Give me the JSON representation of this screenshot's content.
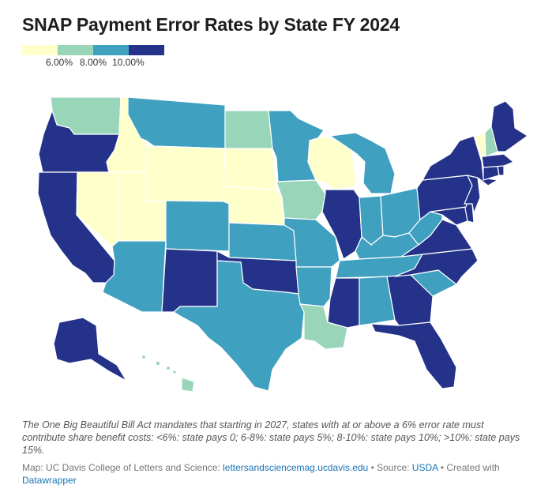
{
  "title": "SNAP Payment Error Rates by State FY 2024",
  "legend": {
    "colors": [
      "#ffffcc",
      "#98d5b9",
      "#40a0c0",
      "#243289"
    ],
    "ticks": [
      "6.00%",
      "8.00%",
      "10.00%"
    ]
  },
  "map": {
    "states": [
      {
        "id": "WA",
        "cls": 1
      },
      {
        "id": "OR",
        "cls": 3
      },
      {
        "id": "CA",
        "cls": 3
      },
      {
        "id": "ID",
        "cls": 0
      },
      {
        "id": "NV",
        "cls": 0
      },
      {
        "id": "UT",
        "cls": 0
      },
      {
        "id": "AZ",
        "cls": 2
      },
      {
        "id": "MT",
        "cls": 2
      },
      {
        "id": "WY",
        "cls": 0
      },
      {
        "id": "CO",
        "cls": 2
      },
      {
        "id": "NM",
        "cls": 3
      },
      {
        "id": "ND",
        "cls": 1
      },
      {
        "id": "SD",
        "cls": 0
      },
      {
        "id": "NE",
        "cls": 0
      },
      {
        "id": "KS",
        "cls": 2
      },
      {
        "id": "OK",
        "cls": 3
      },
      {
        "id": "TX",
        "cls": 2
      },
      {
        "id": "MN",
        "cls": 2
      },
      {
        "id": "IA",
        "cls": 1
      },
      {
        "id": "MO",
        "cls": 2
      },
      {
        "id": "AR",
        "cls": 2
      },
      {
        "id": "LA",
        "cls": 1
      },
      {
        "id": "WI",
        "cls": 0
      },
      {
        "id": "IL",
        "cls": 3
      },
      {
        "id": "MI",
        "cls": 2
      },
      {
        "id": "IN",
        "cls": 2
      },
      {
        "id": "OH",
        "cls": 2
      },
      {
        "id": "KY",
        "cls": 2
      },
      {
        "id": "TN",
        "cls": 2
      },
      {
        "id": "MS",
        "cls": 3
      },
      {
        "id": "AL",
        "cls": 2
      },
      {
        "id": "GA",
        "cls": 3
      },
      {
        "id": "FL",
        "cls": 3
      },
      {
        "id": "SC",
        "cls": 2
      },
      {
        "id": "NC",
        "cls": 3
      },
      {
        "id": "VA",
        "cls": 3
      },
      {
        "id": "WV",
        "cls": 2
      },
      {
        "id": "MD",
        "cls": 3
      },
      {
        "id": "DE",
        "cls": 3
      },
      {
        "id": "PA",
        "cls": 3
      },
      {
        "id": "NJ",
        "cls": 3
      },
      {
        "id": "NY",
        "cls": 3
      },
      {
        "id": "CT",
        "cls": 3
      },
      {
        "id": "RI",
        "cls": 3
      },
      {
        "id": "MA",
        "cls": 3
      },
      {
        "id": "VT",
        "cls": 0
      },
      {
        "id": "NH",
        "cls": 1
      },
      {
        "id": "ME",
        "cls": 3
      },
      {
        "id": "AK",
        "cls": 3
      },
      {
        "id": "HI",
        "cls": 1
      }
    ]
  },
  "footnote": "The One Big Beautiful Bill Act mandates that starting in 2027, states with at or above a 6% error rate must contribute share benefit costs: <6%: state pays 0; 6-8%: state pays 5%; 8-10%: state pays 10%; >10%: state pays 15%.",
  "credits": {
    "prefix": "Map: UC Davis College of Letters and Science: ",
    "link1": "lettersandsciencemag.ucdavis.edu",
    "mid1": " • Source: ",
    "link2": "USDA",
    "mid2": " • Created with ",
    "link3": "Datawrapper"
  }
}
